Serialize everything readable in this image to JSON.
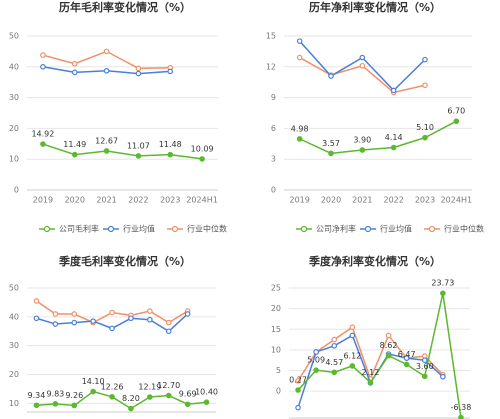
{
  "chart_data": [
    {
      "type": "line",
      "title": "历年毛利率变化情况（%）",
      "categories": [
        "2019",
        "2020",
        "2021",
        "2022",
        "2023",
        "2024H1"
      ],
      "ylim": [
        0,
        50
      ],
      "yticks": [
        0,
        10,
        20,
        30,
        40,
        50
      ],
      "grid": true,
      "series": [
        {
          "name": "公司毛利率",
          "color": "#5cb82e",
          "data_labels": true,
          "values": [
            14.92,
            11.49,
            12.67,
            11.07,
            11.48,
            10.09
          ]
        },
        {
          "name": "行业均值",
          "color": "#4a7fd8",
          "values": [
            40,
            38.2,
            38.7,
            37.8,
            38.5,
            null
          ]
        },
        {
          "name": "行业中位数",
          "color": "#f0906a",
          "values": [
            43.8,
            41,
            45,
            39.5,
            39.7,
            null
          ]
        }
      ]
    },
    {
      "type": "line",
      "title": "历年净利率变化情况（%）",
      "categories": [
        "2019",
        "2020",
        "2021",
        "2022",
        "2023",
        "2024H1"
      ],
      "ylim": [
        0,
        15
      ],
      "yticks": [
        0,
        3,
        6,
        9,
        12,
        15
      ],
      "grid": true,
      "series": [
        {
          "name": "公司净利率",
          "color": "#5cb82e",
          "data_labels": true,
          "values": [
            4.98,
            3.57,
            3.9,
            4.14,
            5.1,
            6.7
          ],
          "value_labels": [
            "4.98",
            "3.57",
            "3.90",
            "4.14",
            "5.10",
            "6.70"
          ]
        },
        {
          "name": "行业均值",
          "color": "#4a7fd8",
          "values": [
            14.5,
            11.1,
            12.9,
            9.7,
            12.7,
            null
          ]
        },
        {
          "name": "行业中位数",
          "color": "#f0906a",
          "values": [
            12.9,
            11.2,
            12.1,
            9.5,
            10.2,
            null
          ]
        }
      ]
    },
    {
      "type": "line",
      "title": "季度毛利率变化情况（%）",
      "categories": [
        null,
        null,
        null,
        null,
        null,
        null,
        null,
        null,
        null,
        null
      ],
      "ylim": [
        7,
        50
      ],
      "yticks": [
        10,
        20,
        30,
        40,
        50
      ],
      "grid": true,
      "series": [
        {
          "color": "#5cb82e",
          "data_labels": true,
          "values": [
            9.34,
            9.83,
            9.26,
            14.1,
            12.26,
            8.2,
            12.19,
            12.7,
            9.69,
            10.4
          ],
          "value_labels": [
            "9.34",
            "9.83",
            "9.26",
            "14.10",
            "12.26",
            "8.20",
            "12.19",
            "12.70",
            "9.69",
            "10.40"
          ]
        },
        {
          "color": "#4a7fd8",
          "values": [
            39.5,
            37.5,
            38,
            38.5,
            36,
            39.5,
            39,
            35,
            41,
            null
          ]
        },
        {
          "color": "#f0906a",
          "values": [
            45.5,
            41,
            41,
            38,
            41.5,
            40.5,
            42,
            38,
            42,
            null
          ]
        }
      ]
    },
    {
      "type": "line",
      "title": "季度净利率变化情况（%）",
      "categories": [
        null,
        null,
        null,
        null,
        null,
        null,
        null,
        null,
        null,
        null
      ],
      "ylim": [
        -6.5,
        25
      ],
      "yticks": [
        0,
        5,
        10,
        15,
        20,
        25
      ],
      "grid": true,
      "series": [
        {
          "color": "#5cb82e",
          "data_labels": true,
          "values": [
            0.27,
            5.09,
            4.57,
            6.12,
            2.12,
            8.62,
            6.47,
            3.6,
            23.73,
            -6.38
          ],
          "value_labels": [
            "0.27",
            "5.09",
            "4.57",
            "6.12",
            "2.12",
            "8.62",
            "6.47",
            "3.60",
            "23.73",
            "-6.38"
          ]
        },
        {
          "color": "#4a7fd8",
          "values": [
            -4,
            9.5,
            11,
            13.5,
            2,
            9,
            8,
            7.5,
            3.5,
            null
          ]
        },
        {
          "color": "#f0906a",
          "values": [
            2.5,
            9.5,
            12.5,
            15.5,
            3,
            13.5,
            8,
            8.5,
            4,
            null
          ]
        }
      ]
    }
  ]
}
